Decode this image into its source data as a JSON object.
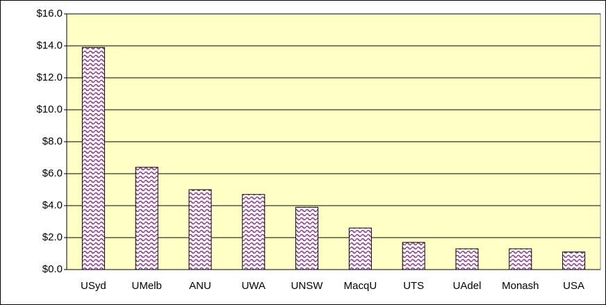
{
  "chart_data": {
    "type": "bar",
    "categories": [
      "USyd",
      "UMelb",
      "ANU",
      "UWA",
      "UNSW",
      "MacqU",
      "UTS",
      "UAdel",
      "Monash",
      "USA"
    ],
    "values": [
      13.9,
      6.4,
      5.0,
      4.7,
      3.9,
      2.6,
      1.7,
      1.3,
      1.3,
      1.1
    ],
    "color": "#993399",
    "ylim": [
      0,
      16
    ],
    "yticks": [
      {
        "value": 0,
        "label": "$0.0"
      },
      {
        "value": 2,
        "label": "$2.0"
      },
      {
        "value": 4,
        "label": "$4.0"
      },
      {
        "value": 6,
        "label": "$6.0"
      },
      {
        "value": 8,
        "label": "$8.0"
      },
      {
        "value": 10,
        "label": "$10.0"
      },
      {
        "value": 12,
        "label": "$12.0"
      },
      {
        "value": 14,
        "label": "$14.0"
      },
      {
        "value": 16,
        "label": "$16.0"
      }
    ],
    "grid": true
  }
}
